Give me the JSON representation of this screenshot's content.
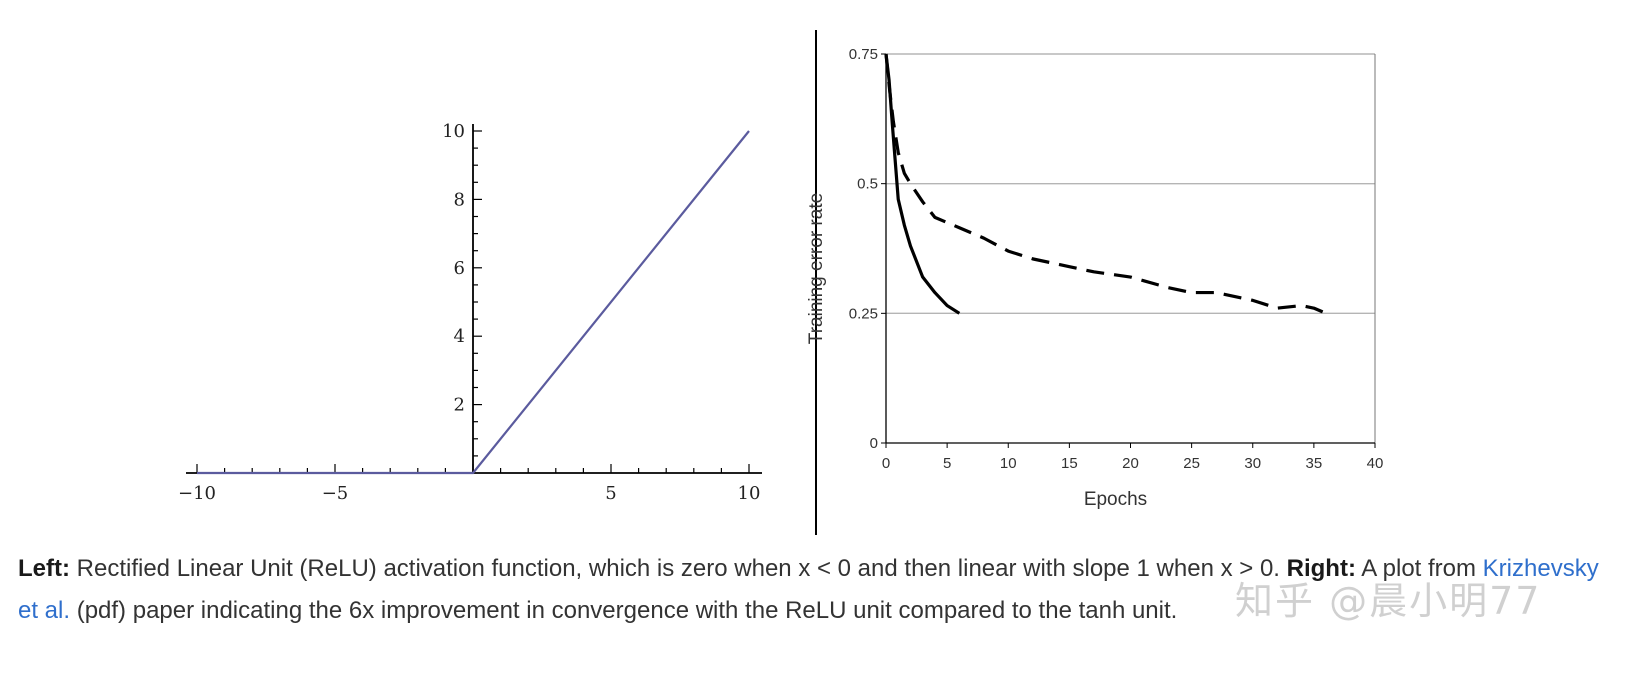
{
  "chart_data": [
    {
      "type": "line",
      "title": "",
      "xlabel": "",
      "ylabel": "",
      "xlim": [
        -10,
        10
      ],
      "ylim": [
        0,
        10
      ],
      "x_ticks": [
        -10,
        -5,
        5,
        10
      ],
      "x_tick_labels": [
        "−10",
        "−5",
        "5",
        "10"
      ],
      "y_ticks": [
        2,
        4,
        6,
        8,
        10
      ],
      "series": [
        {
          "x": [
            -10,
            0,
            10
          ],
          "y": [
            0,
            0,
            10
          ],
          "color": "#5b5b9e"
        }
      ],
      "grid": false
    },
    {
      "type": "line",
      "title": "",
      "xlabel": "Epochs",
      "ylabel": "Training error rate",
      "xlim": [
        0,
        40
      ],
      "ylim": [
        0,
        0.75
      ],
      "x_ticks": [
        0,
        5,
        10,
        15,
        20,
        25,
        30,
        35,
        40
      ],
      "y_ticks": [
        0,
        0.25,
        0.5,
        0.75
      ],
      "y_tick_labels": [
        "0",
        "0.25",
        "0.5",
        "0.75"
      ],
      "grid": true,
      "series": [
        {
          "style": "solid",
          "x": [
            0,
            0.25,
            0.5,
            1,
            1.5,
            2,
            3,
            4,
            5,
            6
          ],
          "y": [
            0.75,
            0.7,
            0.62,
            0.47,
            0.42,
            0.38,
            0.32,
            0.29,
            0.265,
            0.25
          ]
        },
        {
          "style": "dashed",
          "x": [
            0,
            0.3,
            0.6,
            1,
            1.5,
            2,
            3,
            4,
            5,
            6,
            8,
            10,
            12,
            15,
            17,
            20,
            23,
            25,
            27,
            30,
            32,
            34,
            35,
            36
          ],
          "y": [
            0.75,
            0.68,
            0.62,
            0.56,
            0.52,
            0.5,
            0.465,
            0.435,
            0.425,
            0.415,
            0.395,
            0.37,
            0.355,
            0.34,
            0.33,
            0.32,
            0.3,
            0.29,
            0.29,
            0.275,
            0.26,
            0.265,
            0.26,
            0.25
          ]
        }
      ]
    }
  ],
  "caption": {
    "left_label": "Left:",
    "left_text": " Rectified Linear Unit (ReLU) activation function, which is zero when x < 0 and then linear with slope 1 when x > 0. ",
    "right_label": "Right:",
    "right_text_1": " A plot from ",
    "link_text": "Krizhevsky et al.",
    "right_text_2": " (pdf) paper indicating the 6x improvement in convergence with the ReLU unit compared to the tanh unit."
  },
  "watermark": "知乎 @晨小明77"
}
